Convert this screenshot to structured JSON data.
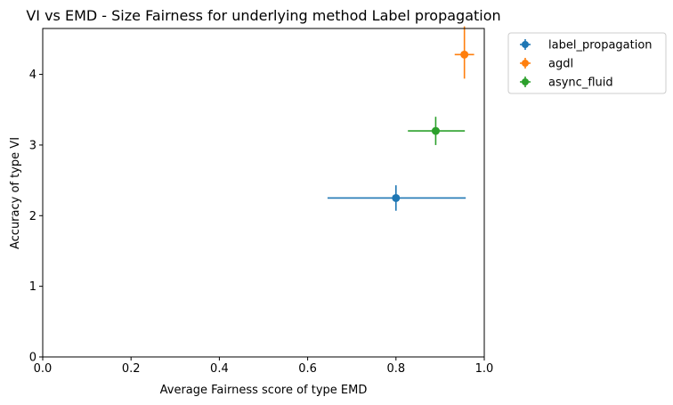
{
  "chart_data": {
    "type": "scatter",
    "title": "VI vs EMD - Size Fairness for underlying method Label propagation",
    "xlabel": "Average Fairness score of type EMD",
    "ylabel": "Accuracy of type VI",
    "xlim": [
      0.0,
      1.0
    ],
    "ylim": [
      0,
      4.65
    ],
    "xticks": [
      "0.0",
      "0.2",
      "0.4",
      "0.6",
      "0.8",
      "1.0"
    ],
    "yticks": [
      "0",
      "1",
      "2",
      "3",
      "4"
    ],
    "legend_position": "outside upper right",
    "grid": false,
    "series": [
      {
        "name": "label_propagation",
        "color": "#1f77b4",
        "x": 0.8,
        "y": 2.25,
        "xerr": [
          0.155,
          0.158
        ],
        "yerr": [
          0.18,
          0.18
        ]
      },
      {
        "name": "agdl",
        "color": "#ff7f0e",
        "x": 0.955,
        "y": 4.28,
        "xerr": [
          0.022,
          0.022
        ],
        "yerr": [
          0.34,
          0.4
        ]
      },
      {
        "name": "async_fluid",
        "color": "#2ca02c",
        "x": 0.89,
        "y": 3.2,
        "xerr": [
          0.063,
          0.066
        ],
        "yerr": [
          0.2,
          0.2
        ]
      }
    ]
  }
}
